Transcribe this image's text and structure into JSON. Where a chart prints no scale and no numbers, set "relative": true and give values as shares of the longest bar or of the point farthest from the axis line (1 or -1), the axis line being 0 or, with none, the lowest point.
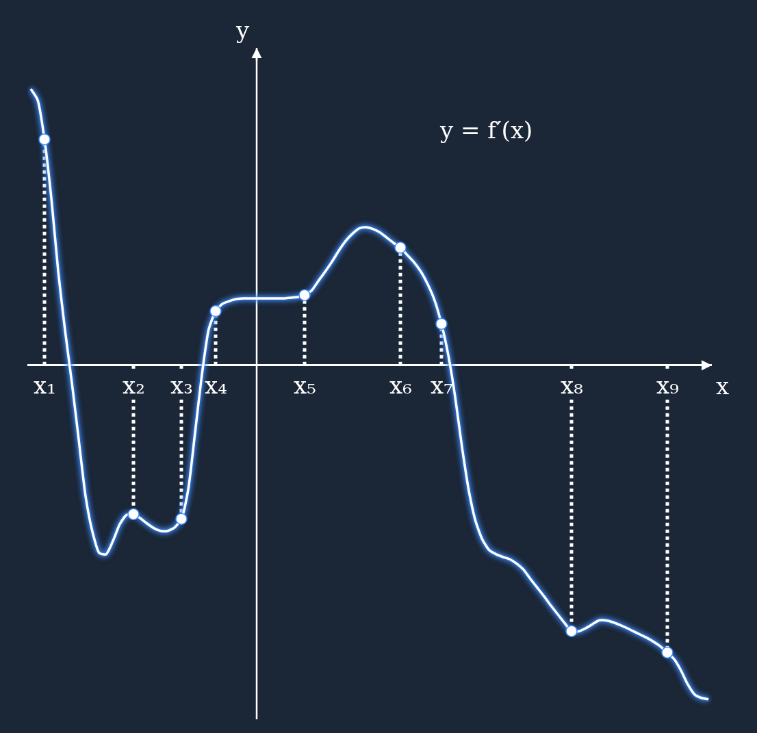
{
  "chart_data": {
    "type": "line",
    "relative": true,
    "xlabel": "x",
    "ylabel": "y",
    "tick_labels": "x",
    "grid": "x",
    "annotations": [
      "y = f′(x)"
    ],
    "categories": [
      null,
      null,
      "x₁",
      null,
      null,
      null,
      null,
      null,
      null,
      null,
      null,
      null,
      null,
      null,
      null,
      "x₂",
      null,
      null,
      null,
      null,
      null,
      null,
      "x₃",
      null,
      null,
      null,
      null,
      "x₄",
      null,
      null,
      null,
      null,
      null,
      null,
      null,
      null,
      null,
      null,
      null,
      null,
      "x₅",
      null,
      null,
      null,
      null,
      null,
      null,
      null,
      null,
      null,
      null,
      null,
      null,
      null,
      "x₆",
      null,
      null,
      null,
      null,
      null,
      "x₇",
      null,
      null,
      null,
      null,
      null,
      null,
      null,
      null,
      null,
      null,
      null,
      null,
      null,
      null,
      null,
      null,
      null,
      null,
      "x₈",
      null,
      null,
      null,
      null,
      null,
      null,
      null,
      null,
      null,
      null,
      null,
      null,
      null,
      "x₉",
      null,
      null,
      null,
      null,
      null,
      null
    ],
    "series": [
      {
        "type": "line",
        "color": "#ffffff",
        "marker": "none",
        "line_style": "solid",
        "values": [
          0.827,
          0.794,
          0.676,
          0.5,
          0.282,
          0.105,
          -0.052,
          -0.222,
          -0.392,
          -0.498,
          -0.562,
          -0.566,
          -0.526,
          -0.476,
          -0.448,
          -0.446,
          -0.458,
          -0.474,
          -0.488,
          -0.496,
          -0.496,
          -0.486,
          -0.46,
          -0.372,
          -0.202,
          -0.028,
          0.108,
          0.162,
          0.184,
          0.192,
          0.198,
          0.2,
          0.2,
          0.2,
          0.2,
          0.2,
          0.2,
          0.2,
          0.202,
          0.204,
          0.21,
          0.223,
          0.252,
          0.28,
          0.31,
          0.343,
          0.372,
          0.394,
          0.41,
          0.413,
          0.408,
          0.398,
          0.382,
          0.366,
          0.352,
          0.33,
          0.308,
          0.28,
          0.242,
          0.194,
          0.124,
          0.03,
          -0.095,
          -0.245,
          -0.376,
          -0.468,
          -0.523,
          -0.554,
          -0.566,
          -0.574,
          -0.581,
          -0.594,
          -0.612,
          -0.64,
          -0.666,
          -0.692,
          -0.72,
          -0.746,
          -0.772,
          -0.796,
          -0.797,
          -0.788,
          -0.776,
          -0.764,
          -0.764,
          -0.769,
          -0.777,
          -0.786,
          -0.796,
          -0.806,
          -0.816,
          -0.828,
          -0.842,
          -0.86,
          -0.88,
          -0.914,
          -0.956,
          -0.986,
          -0.996,
          -1
        ]
      },
      {
        "type": "scatter",
        "color": "#ffffff",
        "marker": "circle",
        "x": [
          "x₁",
          "x₂",
          "x₃",
          "x₄",
          "x₅",
          "x₆",
          "x₇",
          "x₈",
          "x₉"
        ],
        "values": [
          0.676,
          -0.446,
          -0.46,
          0.162,
          0.21,
          0.352,
          0.124,
          -0.796,
          -0.86
        ]
      }
    ]
  }
}
